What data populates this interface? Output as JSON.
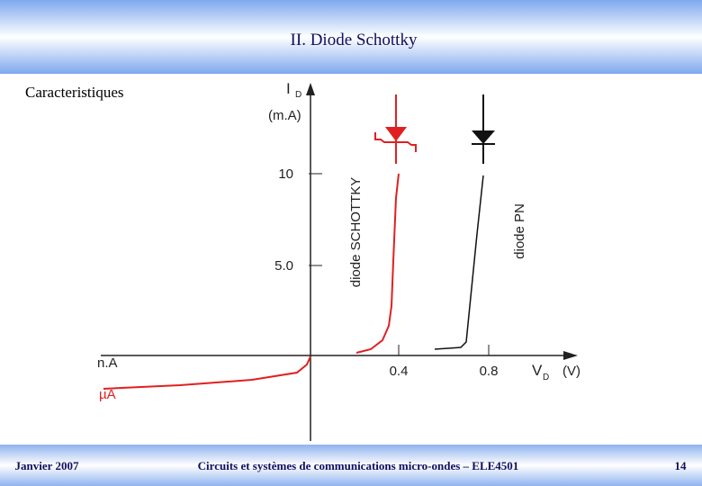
{
  "header": {
    "title": "II. Diode  Schottky"
  },
  "section": "Caracteristiques",
  "graph": {
    "y_label": "I",
    "y_label_sub": "D",
    "y_unit": "(m.A)",
    "y_ticks": [
      "10",
      "5.0"
    ],
    "x_ticks": [
      "0.4",
      "0.8"
    ],
    "x_label": "V",
    "x_label_sub": "D",
    "x_unit": "(V)",
    "neg_labels": [
      "n.A",
      "µA"
    ],
    "curves": [
      "diode SCHOTTKY",
      "diode PN"
    ]
  },
  "footer": {
    "left": "Janvier 2007",
    "center": "Circuits et systèmes de communications micro-ondes – ELE4501",
    "right": "14"
  }
}
